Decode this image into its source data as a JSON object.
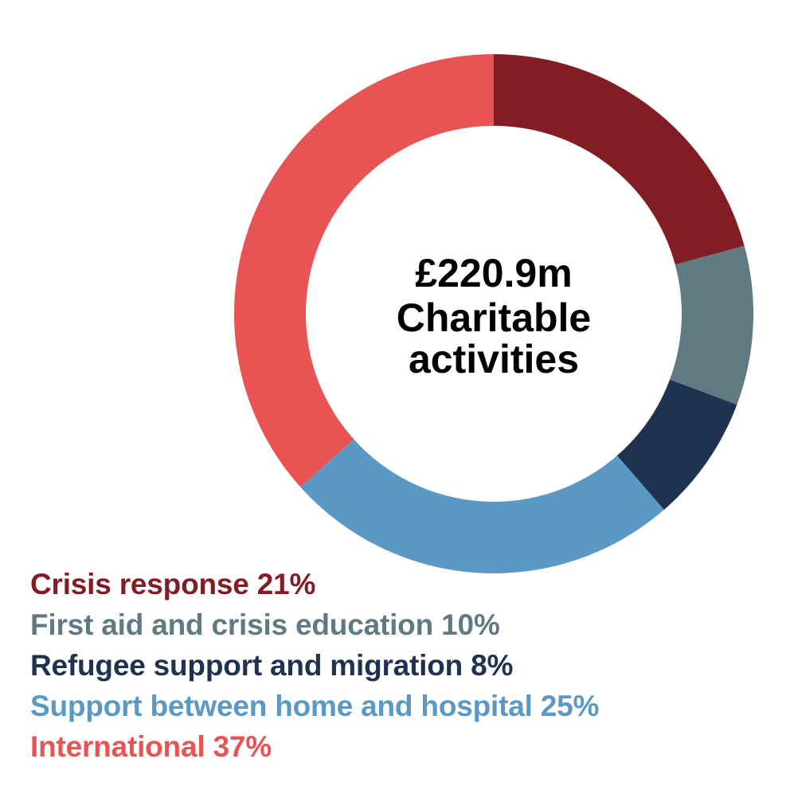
{
  "chart_data": {
    "type": "pie",
    "variant": "donut",
    "center_label": [
      "£220.9m",
      "Charitable",
      "activities"
    ],
    "slices": [
      {
        "label": "Crisis response",
        "percent_label": "21%",
        "value": 21,
        "color": "#821d26"
      },
      {
        "label": "First aid and crisis education",
        "percent_label": "10%",
        "value": 10,
        "color": "#5f7a82"
      },
      {
        "label": "Refugee support and migration",
        "percent_label": "8%",
        "value": 8,
        "color": "#1f3350"
      },
      {
        "label": "Support between home and hospital",
        "percent_label": "25%",
        "value": 25,
        "color": "#5b99c4"
      },
      {
        "label": "International",
        "percent_label": "37%",
        "value": 37,
        "color": "#e85454"
      }
    ],
    "legend_position": "bottom-left"
  }
}
